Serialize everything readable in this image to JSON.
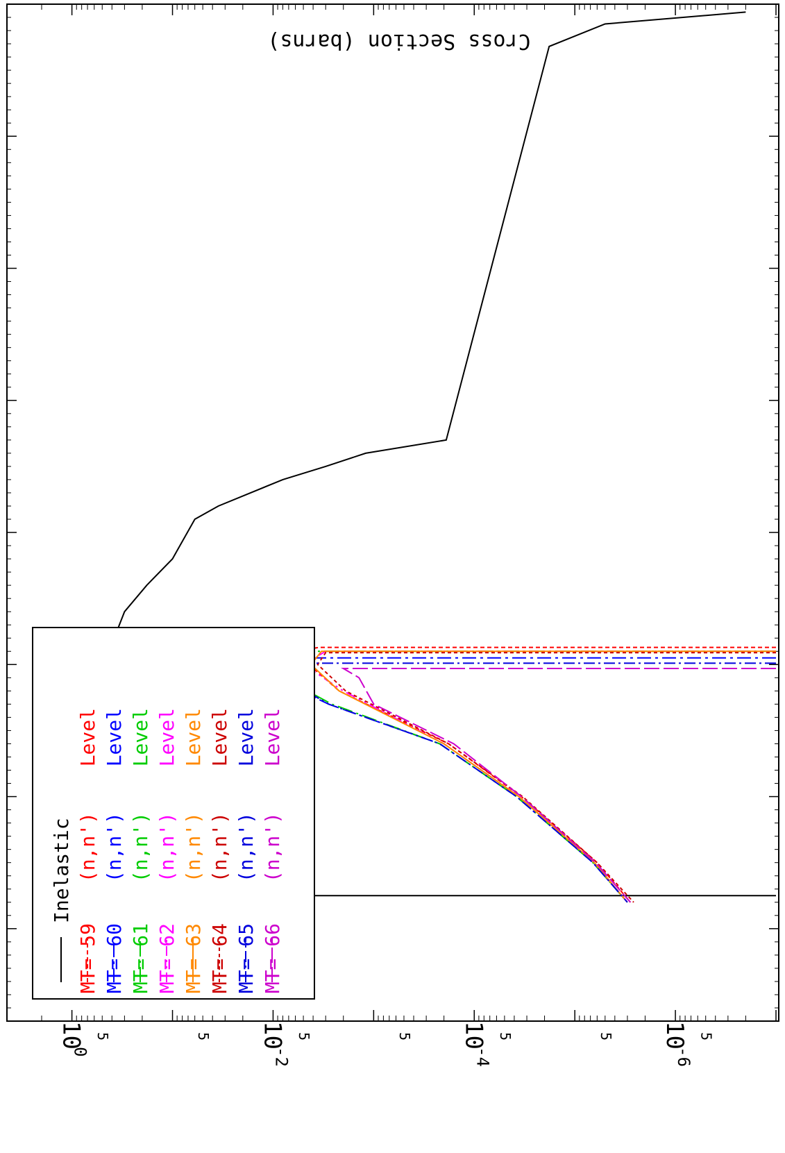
{
  "chart_data": {
    "type": "line",
    "orientation": "rotated-90",
    "ylabel": "Cross Section (barns)",
    "xlabel": "",
    "title": "",
    "yscale": "log",
    "ylim": [
      1e-07,
      2
    ],
    "y_ticks": [
      {
        "value": 1,
        "label_base": "10",
        "label_exp": "0"
      },
      {
        "value": 0.01,
        "label_base": "10",
        "label_exp": "-2"
      },
      {
        "value": 0.0001,
        "label_base": "10",
        "label_exp": "-4"
      },
      {
        "value": 1e-06,
        "label_base": "10",
        "label_exp": "-6"
      }
    ],
    "y_minor_label": "5",
    "y_minor_values": [
      5,
      0.05,
      0.0005,
      5e-06,
      0.5,
      0.005,
      5e-05,
      5e-07
    ],
    "x_major_ticks": [
      0,
      1,
      2,
      3,
      4,
      5,
      6,
      7
    ],
    "grid": false,
    "legend_position": "bottom-left",
    "series": [
      {
        "name": "Inelastic",
        "mt": "",
        "reaction": "",
        "level": "",
        "color": "#000000",
        "dash": "",
        "points": [
          [
            0.06,
            2e-07
          ],
          [
            0.15,
            5e-06
          ],
          [
            0.32,
            1.8e-05
          ],
          [
            3.3,
            0.00019
          ],
          [
            3.4,
            0.0012
          ],
          [
            3.5,
            0.003
          ],
          [
            3.6,
            0.008
          ],
          [
            3.8,
            0.035
          ],
          [
            3.9,
            0.06
          ],
          [
            4.2,
            0.1
          ],
          [
            4.4,
            0.18
          ],
          [
            4.6,
            0.3
          ],
          [
            4.8,
            0.38
          ],
          [
            5.0,
            0.4
          ],
          [
            5.2,
            0.38
          ],
          [
            5.4,
            0.35
          ],
          [
            5.8,
            0.3
          ],
          [
            5.93,
            0.55
          ],
          [
            6.2,
            0.08
          ],
          [
            6.45,
            0.03
          ],
          [
            6.75,
            0.016
          ],
          [
            6.75,
            1e-07
          ]
        ]
      },
      {
        "name": "(n,n') Level",
        "mt": "59",
        "reaction": "(n,n')",
        "level": "Level",
        "color": "#ff0000",
        "dash": "6,4",
        "points": [
          [
            4.87,
            1e-07
          ],
          [
            4.87,
            0.0035
          ],
          [
            4.9,
            0.006
          ],
          [
            5.0,
            0.0044
          ],
          [
            5.2,
            0.0022
          ],
          [
            5.6,
            0.00018
          ],
          [
            6.0,
            3.4e-05
          ],
          [
            6.5,
            6e-06
          ],
          [
            6.8,
            2.8e-06
          ]
        ]
      },
      {
        "name": "(n,n') Level",
        "mt": "60",
        "reaction": "(n,n')",
        "level": "Level",
        "color": "#0000ff",
        "dash": "20,6,4,6",
        "points": [
          [
            4.95,
            1e-07
          ],
          [
            4.95,
            0.006
          ],
          [
            5.0,
            0.016
          ],
          [
            5.1,
            0.01
          ],
          [
            5.3,
            0.0028
          ],
          [
            5.6,
            0.00022
          ],
          [
            6.0,
            3.8e-05
          ],
          [
            6.5,
            6.6e-06
          ],
          [
            6.8,
            3e-06
          ]
        ]
      },
      {
        "name": "(n,n') Level",
        "mt": "61",
        "reaction": "(n,n')",
        "level": "Level",
        "color": "#00cc00",
        "dash": "22,6,3,6",
        "points": [
          [
            4.9,
            1e-07
          ],
          [
            4.9,
            0.0045
          ],
          [
            5.0,
            0.011
          ],
          [
            5.1,
            0.008
          ],
          [
            5.3,
            0.0026
          ],
          [
            5.6,
            0.00022
          ],
          [
            6.0,
            3.8e-05
          ],
          [
            6.5,
            6.6e-06
          ],
          [
            6.8,
            3e-06
          ]
        ]
      },
      {
        "name": "(n,n') Level",
        "mt": "62",
        "reaction": "(n,n')",
        "level": "Level",
        "color": "#ff00ff",
        "dash": "14,6,3,6,3,6",
        "points": [
          [
            4.9,
            1e-07
          ],
          [
            4.9,
            0.003
          ],
          [
            5.0,
            0.005
          ],
          [
            5.2,
            0.002
          ],
          [
            5.6,
            0.0002
          ],
          [
            6.0,
            3.6e-05
          ],
          [
            6.5,
            6.4e-06
          ],
          [
            6.8,
            3e-06
          ]
        ]
      },
      {
        "name": "(n,n') Level",
        "mt": "63",
        "reaction": "(n,n')",
        "level": "Level",
        "color": "#ff8800",
        "dash": "",
        "points": [
          [
            4.9,
            1e-07
          ],
          [
            4.9,
            0.0033
          ],
          [
            5.0,
            0.0042
          ],
          [
            5.2,
            0.0022
          ],
          [
            5.6,
            0.0002
          ],
          [
            6.0,
            3.6e-05
          ],
          [
            6.5,
            6.4e-06
          ],
          [
            6.8,
            3e-06
          ]
        ]
      },
      {
        "name": "(n,n') Level",
        "mt": "64",
        "reaction": "(n,n')",
        "level": "Level",
        "color": "#cc0000",
        "dash": "5,4",
        "points": [
          [
            4.91,
            1e-07
          ],
          [
            4.91,
            0.003
          ],
          [
            5.0,
            0.0036
          ],
          [
            5.2,
            0.0019
          ],
          [
            5.6,
            0.00018
          ],
          [
            6.0,
            3.3e-05
          ],
          [
            6.5,
            6e-06
          ],
          [
            6.8,
            2.6e-06
          ]
        ]
      },
      {
        "name": "(n,n') Level",
        "mt": "65",
        "reaction": "(n,n')",
        "level": "Level",
        "color": "#0000dd",
        "dash": "16,5,3,5",
        "points": [
          [
            4.99,
            1e-07
          ],
          [
            4.99,
            0.011
          ],
          [
            5.0,
            0.012
          ],
          [
            5.1,
            0.008
          ],
          [
            5.3,
            0.0028
          ],
          [
            5.6,
            0.00022
          ],
          [
            6.0,
            3.8e-05
          ],
          [
            6.5,
            6.6e-06
          ],
          [
            6.8,
            3e-06
          ]
        ]
      },
      {
        "name": "(n,n') Level",
        "mt": "66",
        "reaction": "(n,n')",
        "level": "Level",
        "color": "#cc00cc",
        "dash": "22,6",
        "points": [
          [
            5.03,
            1e-07
          ],
          [
            5.03,
            0.002
          ],
          [
            5.1,
            0.0014
          ],
          [
            5.3,
            0.001
          ],
          [
            5.6,
            0.00016
          ],
          [
            6.0,
            3.4e-05
          ],
          [
            6.5,
            6.2e-06
          ],
          [
            6.8,
            2.8e-06
          ]
        ]
      }
    ]
  }
}
